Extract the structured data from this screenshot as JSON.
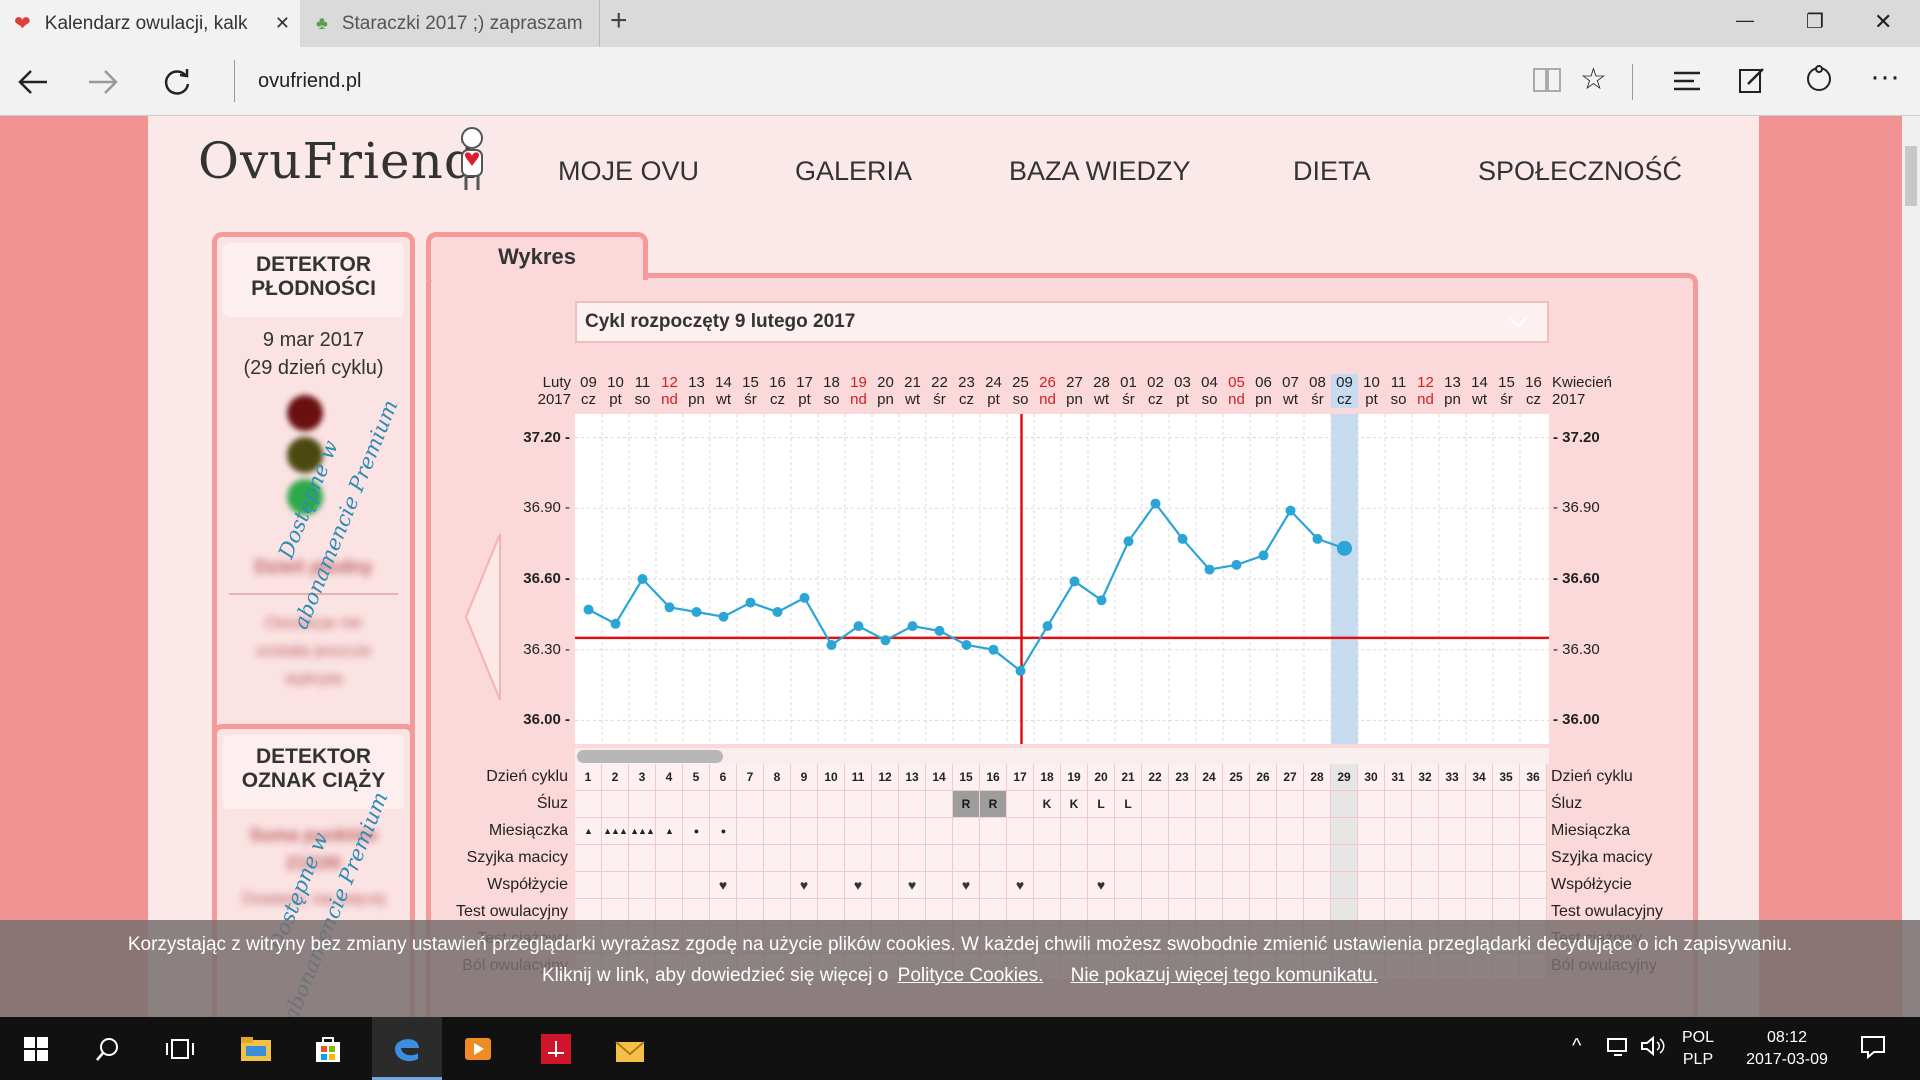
{
  "browser": {
    "tabs": [
      {
        "title": "Kalendarz owulacji, kalk",
        "close": "✕"
      },
      {
        "title": "Staraczki 2017 ;) zapraszam"
      }
    ],
    "new_tab": "+",
    "url": "ovufriend.pl",
    "window_controls": {
      "minimize": "—",
      "restore": "❐",
      "close": "✕"
    }
  },
  "site": {
    "logo": "OvuFriend",
    "nav": [
      "MOJE OVU",
      "GALERIA",
      "BAZA WIEDZY",
      "DIETA",
      "SPOŁECZNOŚĆ"
    ]
  },
  "fertility": {
    "title_line1": "DETEKTOR",
    "title_line2": "PŁODNOŚCI",
    "date": "9 mar 2017",
    "cycle_day": "(29 dzień cyklu)",
    "premium": "Dostępne w abonamencie Premium",
    "blur1": "Dzień płodny",
    "blur2": "Owulacja nie została jeszcze wykryta"
  },
  "pregnancy": {
    "title_line1": "DETEKTOR",
    "title_line2": "OZNAK CIĄŻY",
    "blur1": "Suma punktów 21/100",
    "blur2": "Dowiedz się więcej",
    "premium": "Dostępne w abonamencie Premium"
  },
  "chart_tab": "Wykres",
  "cycle_select": "Cykl rozpoczęty 9 lutego 2017",
  "month_left": {
    "name": "Luty",
    "year": "2017"
  },
  "month_right": {
    "name": "Kwiecień",
    "year": "2017"
  },
  "colors": {
    "line": "#2aa5d6",
    "coverline": "#dd1111",
    "sunday": "#d21f1f",
    "today": "#c6dbef"
  },
  "days": [
    {
      "d": "09",
      "w": "cz"
    },
    {
      "d": "10",
      "w": "pt"
    },
    {
      "d": "11",
      "w": "so"
    },
    {
      "d": "12",
      "w": "nd"
    },
    {
      "d": "13",
      "w": "pn"
    },
    {
      "d": "14",
      "w": "wt"
    },
    {
      "d": "15",
      "w": "śr"
    },
    {
      "d": "16",
      "w": "cz"
    },
    {
      "d": "17",
      "w": "pt"
    },
    {
      "d": "18",
      "w": "so"
    },
    {
      "d": "19",
      "w": "nd"
    },
    {
      "d": "20",
      "w": "pn"
    },
    {
      "d": "21",
      "w": "wt"
    },
    {
      "d": "22",
      "w": "śr"
    },
    {
      "d": "23",
      "w": "cz"
    },
    {
      "d": "24",
      "w": "pt"
    },
    {
      "d": "25",
      "w": "so"
    },
    {
      "d": "26",
      "w": "nd"
    },
    {
      "d": "27",
      "w": "pn"
    },
    {
      "d": "28",
      "w": "wt"
    },
    {
      "d": "01",
      "w": "śr"
    },
    {
      "d": "02",
      "w": "cz"
    },
    {
      "d": "03",
      "w": "pt"
    },
    {
      "d": "04",
      "w": "so"
    },
    {
      "d": "05",
      "w": "nd"
    },
    {
      "d": "06",
      "w": "pn"
    },
    {
      "d": "07",
      "w": "wt"
    },
    {
      "d": "08",
      "w": "śr"
    },
    {
      "d": "09",
      "w": "cz"
    },
    {
      "d": "10",
      "w": "pt"
    },
    {
      "d": "11",
      "w": "so"
    },
    {
      "d": "12",
      "w": "nd"
    },
    {
      "d": "13",
      "w": "pn"
    },
    {
      "d": "14",
      "w": "wt"
    },
    {
      "d": "15",
      "w": "śr"
    },
    {
      "d": "16",
      "w": "cz"
    }
  ],
  "chart_data": {
    "type": "line",
    "x": [
      1,
      2,
      3,
      4,
      5,
      6,
      7,
      8,
      9,
      10,
      11,
      12,
      13,
      14,
      15,
      16,
      17,
      18,
      19,
      20,
      21,
      22,
      23,
      24,
      25,
      26,
      27,
      28,
      29
    ],
    "values": [
      36.47,
      36.41,
      36.6,
      36.48,
      36.46,
      36.44,
      36.5,
      36.46,
      36.52,
      36.32,
      36.4,
      36.34,
      36.4,
      36.38,
      36.32,
      36.3,
      36.21,
      36.4,
      36.59,
      36.51,
      36.76,
      36.92,
      36.77,
      36.64,
      36.66,
      36.7,
      36.89,
      36.77,
      36.73
    ],
    "yticks": [
      "36.00",
      "36.30",
      "36.60",
      "36.90",
      "37.20"
    ],
    "ylim": [
      35.9,
      37.3
    ],
    "coverline": 36.35,
    "ovulation_day": 17,
    "today_day": 29
  },
  "rows": {
    "labels": [
      "Dzień cyklu",
      "Śluz",
      "Miesiączka",
      "Szyjka macicy",
      "Współżycie",
      "Test owulacyjny",
      "Test ciążowy",
      "Ból owulacyjny"
    ],
    "cycle_days": [
      "1",
      "2",
      "3",
      "4",
      "5",
      "6",
      "7",
      "8",
      "9",
      "10",
      "11",
      "12",
      "13",
      "14",
      "15",
      "16",
      "17",
      "18",
      "19",
      "20",
      "21",
      "22",
      "23",
      "24",
      "25",
      "26",
      "27",
      "28",
      "29",
      "30",
      "31",
      "32",
      "33",
      "34",
      "35",
      "36"
    ],
    "sluz": [
      {
        "day": 15,
        "v": "R"
      },
      {
        "day": 16,
        "v": "R"
      },
      {
        "day": 18,
        "v": "K"
      },
      {
        "day": 19,
        "v": "K"
      },
      {
        "day": 20,
        "v": "L"
      },
      {
        "day": 21,
        "v": "L"
      }
    ],
    "menses": [
      {
        "day": 1,
        "v": "▲"
      },
      {
        "day": 2,
        "v": "▲▲▲"
      },
      {
        "day": 3,
        "v": "▲▲▲"
      },
      {
        "day": 4,
        "v": "▲"
      },
      {
        "day": 5,
        "v": "●"
      },
      {
        "day": 6,
        "v": "●"
      }
    ],
    "sex_days": [
      6,
      9,
      11,
      13,
      15,
      17,
      20
    ]
  },
  "cookie": {
    "line1": "Korzystając z witryny bez zmiany ustawień przeglądarki wyrażasz zgodę na użycie plików cookies. W każdej chwili możesz swobodnie zmienić ustawienia przeglądarki decydujące o ich zapisywaniu.",
    "line2_prefix": "Kliknij w link, aby dowiedzieć się więcej o",
    "policy_link": "Polityce Cookies.",
    "dismiss_link": "Nie pokazuj więcej tego komunikatu."
  },
  "taskbar": {
    "lang": "POL",
    "layout": "PLP",
    "time": "08:12",
    "date": "2017-03-09"
  }
}
